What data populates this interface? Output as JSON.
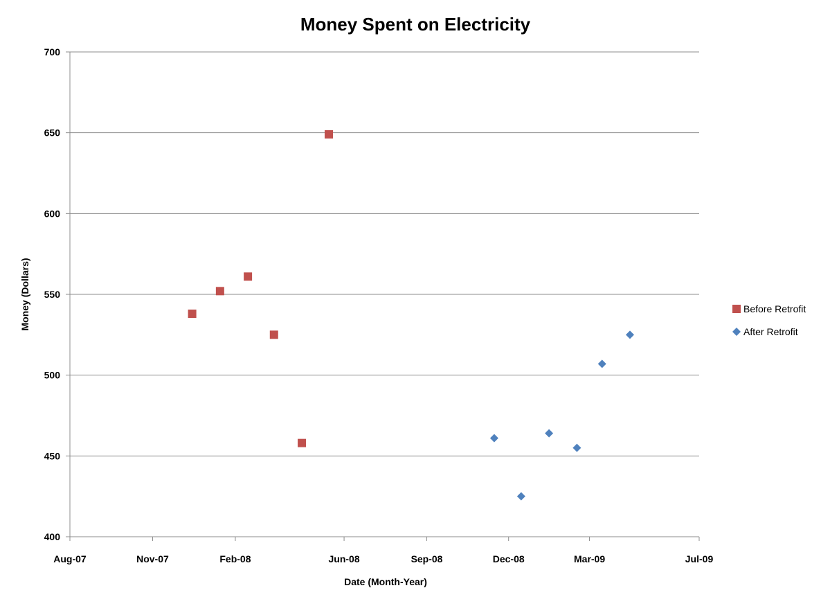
{
  "chart_data": {
    "type": "scatter",
    "title": "Money Spent on Electricity",
    "xlabel": "Date (Month-Year)",
    "ylabel": "Money (Dollars)",
    "xlim": [
      "2007-08-01",
      "2009-07-01"
    ],
    "ylim": [
      400,
      700
    ],
    "x_ticks": [
      {
        "date": "2007-08-01",
        "label": "Aug-07"
      },
      {
        "date": "2007-11-01",
        "label": "Nov-07"
      },
      {
        "date": "2008-02-01",
        "label": "Feb-08"
      },
      {
        "date": "2008-06-01",
        "label": "Jun-08"
      },
      {
        "date": "2008-09-01",
        "label": "Sep-08"
      },
      {
        "date": "2008-12-01",
        "label": "Dec-08"
      },
      {
        "date": "2009-03-01",
        "label": "Mar-09"
      },
      {
        "date": "2009-07-01",
        "label": "Jul-09"
      }
    ],
    "y_ticks": [
      400,
      450,
      500,
      550,
      600,
      650,
      700
    ],
    "grid": "horizontal",
    "legend_position": "right",
    "series": [
      {
        "name": "Before Retrofit",
        "marker": "square",
        "color": "#c0504d",
        "points": [
          {
            "x": "2007-12-15",
            "y": 538
          },
          {
            "x": "2008-01-15",
            "y": 552
          },
          {
            "x": "2008-02-15",
            "y": 561
          },
          {
            "x": "2008-03-15",
            "y": 525
          },
          {
            "x": "2008-04-15",
            "y": 458
          },
          {
            "x": "2008-05-15",
            "y": 649
          }
        ]
      },
      {
        "name": "After Retrofit",
        "marker": "diamond",
        "color": "#4f81bd",
        "points": [
          {
            "x": "2008-11-15",
            "y": 461
          },
          {
            "x": "2008-12-15",
            "y": 425
          },
          {
            "x": "2009-01-15",
            "y": 464
          },
          {
            "x": "2009-02-15",
            "y": 455
          },
          {
            "x": "2009-03-15",
            "y": 507
          },
          {
            "x": "2009-04-15",
            "y": 525
          }
        ]
      }
    ]
  }
}
